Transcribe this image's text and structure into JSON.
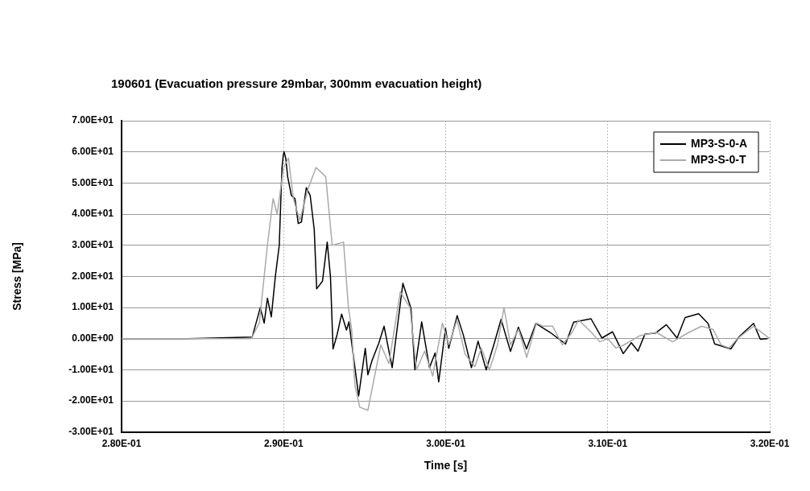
{
  "chart_data": {
    "type": "line",
    "title": "190601 (Evacuation pressure 29mbar, 300mm evacuation height)",
    "xlabel": "Time [s]",
    "ylabel": "Stress [MPa]",
    "xlim": [
      0.28,
      0.32
    ],
    "xticks": [
      {
        "value": 0.28,
        "label": "2.80E-01"
      },
      {
        "value": 0.29,
        "label": "2.90E-01"
      },
      {
        "value": 0.3,
        "label": "3.00E-01"
      },
      {
        "value": 0.31,
        "label": "3.10E-01"
      },
      {
        "value": 0.32,
        "label": "3.20E-01"
      }
    ],
    "ylim": [
      -30,
      70
    ],
    "yticks": [
      {
        "value": -30,
        "label": "-3.00E+01"
      },
      {
        "value": -20,
        "label": "-2.00E+01"
      },
      {
        "value": -10,
        "label": "-1.00E+01"
      },
      {
        "value": 0,
        "label": "0.00E+00"
      },
      {
        "value": 10,
        "label": "1.00E+01"
      },
      {
        "value": 20,
        "label": "2.00E+01"
      },
      {
        "value": 30,
        "label": "3.00E+01"
      },
      {
        "value": 40,
        "label": "4.00E+01"
      },
      {
        "value": 50,
        "label": "5.00E+01"
      },
      {
        "value": 60,
        "label": "6.00E+01"
      },
      {
        "value": 70,
        "label": "7.00E+01"
      }
    ],
    "grid": true,
    "legend": "top right",
    "marker": "none",
    "line_style": "solid",
    "series": [
      {
        "name": "MP3-S-0-T",
        "color": "#aaaaaa",
        "x": [
          0.28,
          0.284,
          0.288,
          0.2885,
          0.289,
          0.28935,
          0.2896,
          0.29,
          0.2903,
          0.2906,
          0.291,
          0.2915,
          0.292,
          0.2926,
          0.293,
          0.2937,
          0.294,
          0.2942,
          0.2944,
          0.2947,
          0.2952,
          0.2955,
          0.296,
          0.2965,
          0.2972,
          0.2978,
          0.2982,
          0.2987,
          0.2992,
          0.2998,
          0.3002,
          0.3007,
          0.3012,
          0.3018,
          0.3022,
          0.3027,
          0.3032,
          0.3036,
          0.304,
          0.3045,
          0.305,
          0.3056,
          0.306,
          0.3066,
          0.3072,
          0.3078,
          0.3082,
          0.309,
          0.3095,
          0.31,
          0.3105,
          0.311,
          0.312,
          0.313,
          0.314,
          0.315,
          0.3158,
          0.3165,
          0.317,
          0.3175,
          0.318,
          0.319,
          0.32
        ],
        "values": [
          0,
          0,
          0,
          5,
          30,
          45,
          40,
          55,
          58,
          45,
          38,
          48,
          55,
          52,
          30,
          31,
          10,
          3,
          -15,
          -22,
          -23,
          -15,
          -2,
          -8,
          15,
          10,
          -10,
          -4,
          -12,
          5,
          -2,
          6,
          -5,
          -9,
          -3,
          -10,
          -2,
          10,
          -2,
          3,
          -6,
          5,
          4,
          4,
          -2,
          2,
          6,
          2,
          -1,
          0,
          -3,
          -2,
          1,
          2,
          -1,
          2,
          4,
          3,
          -2,
          -3,
          0,
          4,
          0
        ]
      },
      {
        "name": "MP3-S-0-A",
        "color": "#000000",
        "x": [
          0.28,
          0.284,
          0.28806,
          0.28856,
          0.2888,
          0.289,
          0.28924,
          0.28949,
          0.28973,
          0.2899,
          0.28998,
          0.29003,
          0.29013,
          0.29025,
          0.29048,
          0.2907,
          0.2909,
          0.2911,
          0.2914,
          0.29164,
          0.29189,
          0.29204,
          0.2924,
          0.29269,
          0.29289,
          0.29305,
          0.2933,
          0.29358,
          0.29388,
          0.29403,
          0.29463,
          0.29504,
          0.2952,
          0.29546,
          0.29587,
          0.2962,
          0.2967,
          0.29736,
          0.29786,
          0.2981,
          0.29852,
          0.299,
          0.29935,
          0.29957,
          0.29999,
          0.30019,
          0.30071,
          0.30109,
          0.30159,
          0.302,
          0.3025,
          0.303,
          0.30342,
          0.304,
          0.30449,
          0.30499,
          0.30557,
          0.30645,
          0.3074,
          0.3079,
          0.30897,
          0.30964,
          0.3103,
          0.31096,
          0.31146,
          0.31187,
          0.31229,
          0.31295,
          0.31362,
          0.31428,
          0.31478,
          0.31561,
          0.31619,
          0.3166,
          0.3176,
          0.3181,
          0.319,
          0.31942,
          0.31984
        ],
        "values": [
          0,
          0,
          0.5,
          10,
          5,
          13,
          7,
          20,
          30,
          55,
          59,
          60,
          58,
          52,
          46,
          45,
          37,
          37.5,
          48.5,
          46,
          35,
          16,
          18.5,
          31,
          20,
          -3.3,
          1.3,
          7.9,
          2.8,
          5.4,
          -18.4,
          -3.1,
          -11.6,
          -7,
          -1.5,
          4,
          -9.3,
          17.8,
          9.7,
          -10,
          5.4,
          -9.3,
          -4.6,
          -13.9,
          3.3,
          -3.1,
          7.4,
          1.2,
          -9.3,
          -0.8,
          -10,
          -1.5,
          6.2,
          -4.1,
          3.7,
          -3.3,
          4.9,
          2,
          -1.7,
          5.3,
          6.4,
          0.2,
          2.2,
          -4.8,
          -1.3,
          -4,
          1.4,
          1.8,
          4.5,
          0.2,
          6.8,
          8,
          4.9,
          -1.7,
          -3.3,
          0.6,
          4.9,
          -0.2,
          0
        ]
      }
    ]
  }
}
